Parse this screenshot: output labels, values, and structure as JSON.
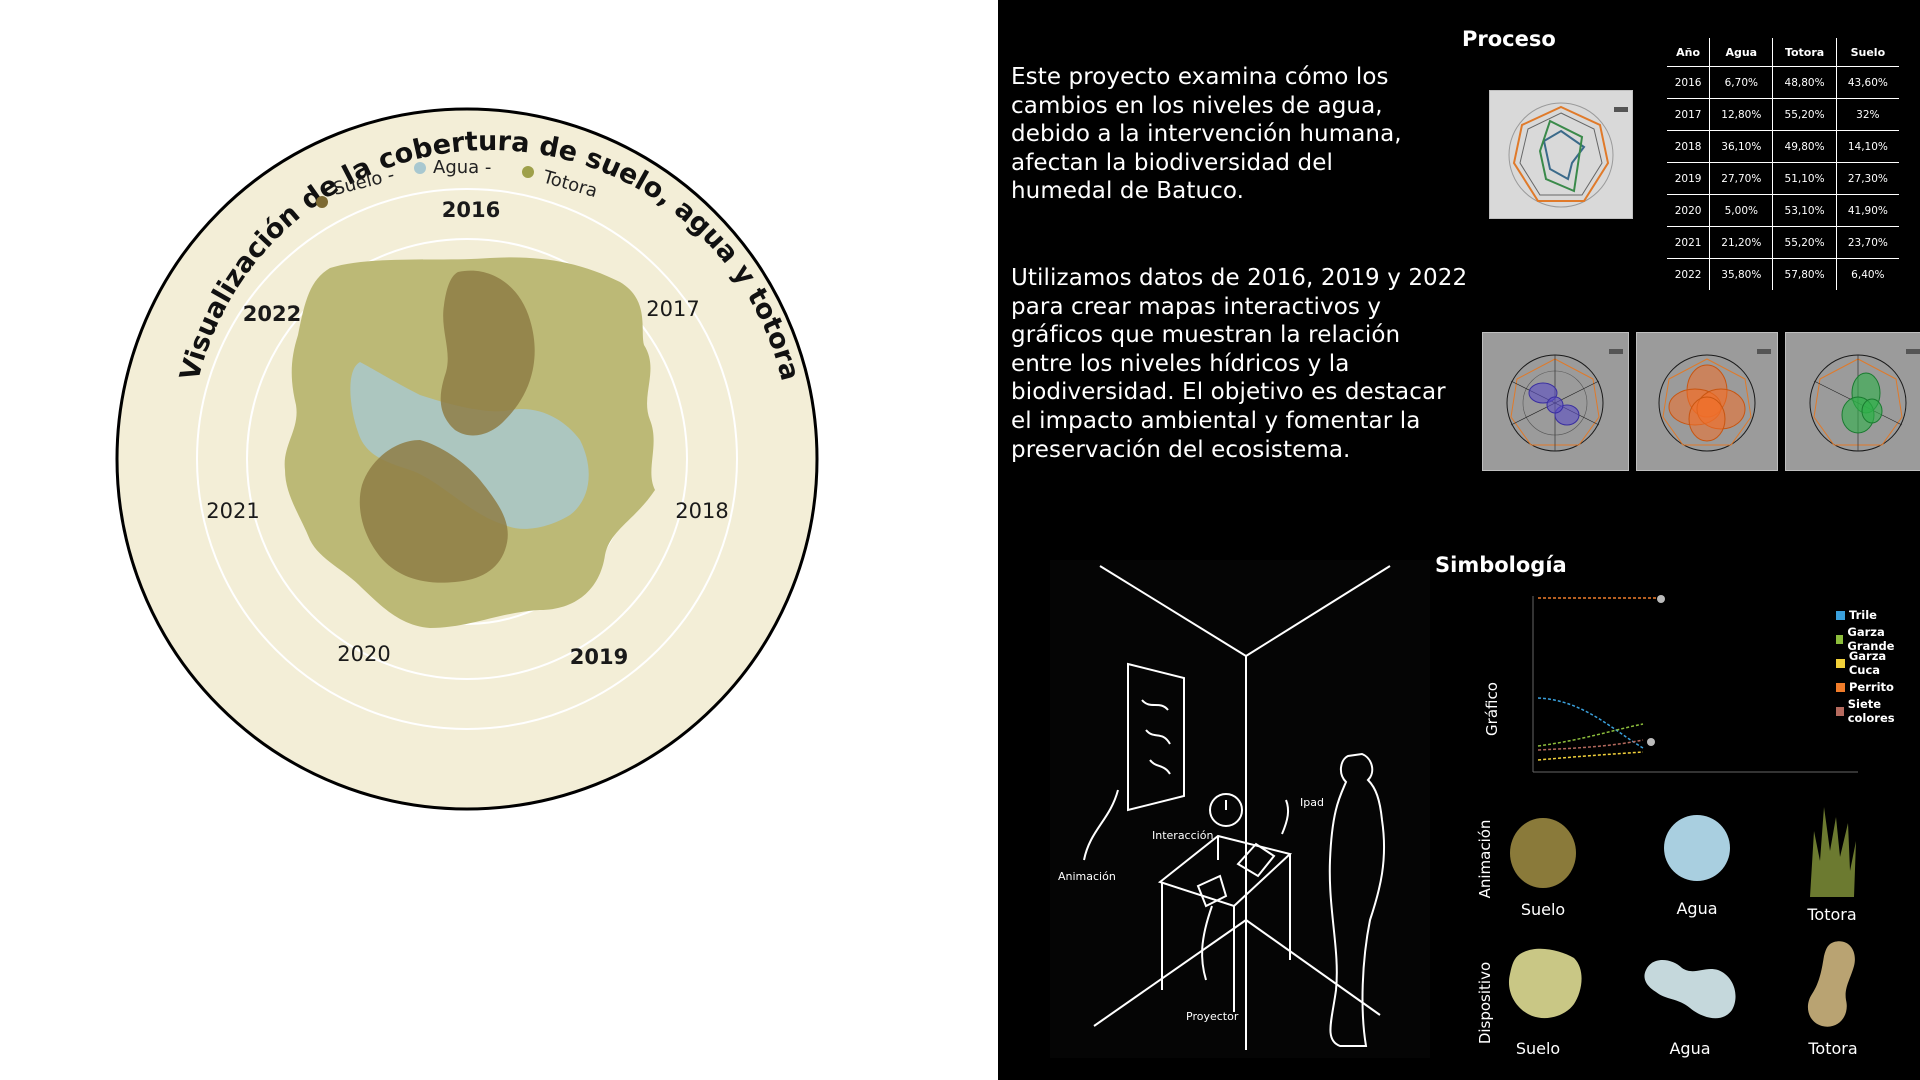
{
  "radial_chart": {
    "title_arc": "Visualización de la cobertura de suelo, agua y totora",
    "legend": [
      {
        "label": "Suelo -",
        "color": "#7d6a32"
      },
      {
        "label": "Agua -",
        "color": "#a8c8d0"
      },
      {
        "label": "Totora",
        "color": "#9ea04a"
      }
    ],
    "years": [
      "2016",
      "2017",
      "2018",
      "2019",
      "2020",
      "2021",
      "2022"
    ],
    "bold_years": [
      "2016",
      "2019",
      "2022"
    ],
    "colors": {
      "background": "#f3eed7",
      "totora": "#bcb976",
      "suelo": "#8e7d45",
      "agua": "#a9c8cc",
      "ring": "#000000"
    }
  },
  "intro": {
    "paragraph1": [
      "Este proyecto examina cómo los",
      "cambios en los niveles de agua,",
      "debido a la intervención humana,",
      "afectan la biodiversidad del",
      "humedal de Batuco."
    ],
    "paragraph2": [
      "Utilizamos datos de 2016, 2019 y 2022",
      "para crear mapas interactivos y",
      "gráficos que muestran la relación",
      "entre los niveles hídricos y la",
      "biodiversidad. El objetivo es destacar",
      "el impacto ambiental y fomentar la",
      "preservación del ecosistema."
    ]
  },
  "proceso": {
    "title": "Proceso",
    "table": {
      "headers": [
        "Año",
        "Agua",
        "Totora",
        "Suelo"
      ],
      "rows": [
        [
          "2016",
          "6,70%",
          "48,80%",
          "43,60%"
        ],
        [
          "2017",
          "12,80%",
          "55,20%",
          "32%"
        ],
        [
          "2018",
          "36,10%",
          "49,80%",
          "14,10%"
        ],
        [
          "2019",
          "27,70%",
          "51,10%",
          "27,30%"
        ],
        [
          "2020",
          "5,00%",
          "53,10%",
          "41,90%"
        ],
        [
          "2021",
          "21,20%",
          "55,20%",
          "23,70%"
        ],
        [
          "2022",
          "35,80%",
          "57,80%",
          "6,40%"
        ]
      ]
    },
    "thumb_colors": [
      "#5b4fc4",
      "#f0702a",
      "#2fb04a"
    ]
  },
  "simbologia": {
    "title": "Simbología",
    "grafico_label": "Gráfico",
    "animacion_label": "Animación",
    "dispositivo_label": "Dispositivo",
    "legend": [
      {
        "label": "Trile",
        "color": "#3aa0dc"
      },
      {
        "label": "Garza Grande",
        "color": "#8dbe3c"
      },
      {
        "label": "Garza Cuca",
        "color": "#f2d13a"
      },
      {
        "label": "Perrito",
        "color": "#f07c2a"
      },
      {
        "label": "Siete colores",
        "color": "#b56a5e"
      }
    ],
    "animacion_items": [
      {
        "label": "Suelo",
        "color": "#8a7a3a"
      },
      {
        "label": "Agua",
        "color": "#a9cfe0"
      },
      {
        "label": "Totora",
        "color": "#6c7a30"
      }
    ],
    "dispositivo_items": [
      {
        "label": "Suelo",
        "color": "#c9c785"
      },
      {
        "label": "Agua",
        "color": "#c5d8dc"
      },
      {
        "label": "Totora",
        "color": "#b9a372"
      }
    ]
  },
  "sketch": {
    "labels": {
      "animacion": "Animación",
      "interaccion": "Interacción",
      "ipad": "Ipad",
      "proyector": "Proyector"
    }
  }
}
